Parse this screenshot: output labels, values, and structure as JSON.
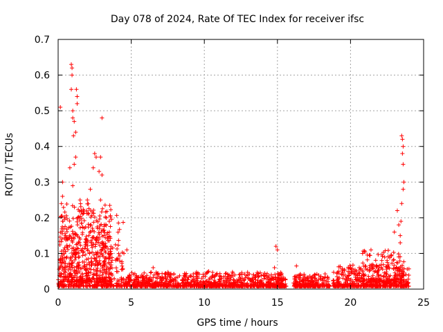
{
  "chart_data": {
    "type": "scatter",
    "title": "Day 078 of 2024, Rate Of TEC Index for receiver ifsc",
    "xlabel": "GPS time / hours",
    "ylabel": "ROTI / TECUs",
    "xlim": [
      0,
      25
    ],
    "ylim": [
      0,
      0.7
    ],
    "xticks": [
      "0",
      "5",
      "10",
      "15",
      "20",
      "25"
    ],
    "yticks": [
      "0",
      "0.1",
      "0.2",
      "0.3",
      "0.4",
      "0.5",
      "0.6",
      "0.7"
    ],
    "grid": true,
    "marker": "plus",
    "series_color": "#ff0000",
    "gaps_hours": [
      [
        15.6,
        16.1
      ],
      [
        18.6,
        18.8
      ]
    ],
    "representative_points": [
      [
        0.15,
        0.51
      ],
      [
        0.3,
        0.3
      ],
      [
        0.3,
        0.26
      ],
      [
        0.5,
        0.15
      ],
      [
        0.6,
        0.09
      ],
      [
        0.8,
        0.34
      ],
      [
        0.9,
        0.63
      ],
      [
        0.95,
        0.62
      ],
      [
        0.95,
        0.6
      ],
      [
        0.9,
        0.56
      ],
      [
        1.0,
        0.5
      ],
      [
        1.0,
        0.48
      ],
      [
        1.1,
        0.47
      ],
      [
        1.05,
        0.43
      ],
      [
        1.2,
        0.44
      ],
      [
        1.25,
        0.56
      ],
      [
        1.3,
        0.54
      ],
      [
        1.3,
        0.52
      ],
      [
        1.2,
        0.37
      ],
      [
        1.1,
        0.35
      ],
      [
        1.0,
        0.29
      ],
      [
        1.5,
        0.25
      ],
      [
        1.6,
        0.22
      ],
      [
        2.0,
        0.25
      ],
      [
        2.2,
        0.28
      ],
      [
        2.5,
        0.38
      ],
      [
        2.6,
        0.37
      ],
      [
        2.4,
        0.34
      ],
      [
        2.8,
        0.33
      ],
      [
        3.0,
        0.48
      ],
      [
        2.9,
        0.37
      ],
      [
        3.0,
        0.32
      ],
      [
        2.9,
        0.25
      ],
      [
        3.3,
        0.2
      ],
      [
        3.5,
        0.19
      ],
      [
        3.5,
        0.16
      ],
      [
        4.5,
        0.1
      ],
      [
        4.7,
        0.11
      ],
      [
        6.5,
        0.06
      ],
      [
        10.3,
        0.05
      ],
      [
        14.9,
        0.12
      ],
      [
        15.0,
        0.11
      ],
      [
        14.8,
        0.06
      ],
      [
        16.3,
        0.065
      ],
      [
        19.2,
        0.05
      ],
      [
        20.0,
        0.06
      ],
      [
        21.4,
        0.11
      ],
      [
        22.5,
        0.08
      ],
      [
        23.0,
        0.16
      ],
      [
        23.2,
        0.22
      ],
      [
        23.3,
        0.18
      ],
      [
        23.4,
        0.13
      ],
      [
        23.5,
        0.43
      ],
      [
        23.55,
        0.42
      ],
      [
        23.6,
        0.4
      ],
      [
        23.55,
        0.38
      ],
      [
        23.6,
        0.35
      ],
      [
        23.65,
        0.3
      ],
      [
        23.6,
        0.28
      ],
      [
        23.5,
        0.24
      ],
      [
        23.45,
        0.19
      ],
      [
        23.4,
        0.15
      ]
    ],
    "baseline_density": {
      "description": "dense cluster of points near 0.01-0.03 across 0-24 h",
      "segments": [
        {
          "x_start": 0.0,
          "x_end": 4.5,
          "y_low": 0.0,
          "y_high": 0.2
        },
        {
          "x_start": 4.5,
          "x_end": 15.6,
          "y_low": 0.0,
          "y_high": 0.04
        },
        {
          "x_start": 16.1,
          "x_end": 18.6,
          "y_low": 0.0,
          "y_high": 0.035
        },
        {
          "x_start": 18.8,
          "x_end": 24.0,
          "y_low": 0.0,
          "y_high": 0.06
        }
      ]
    }
  }
}
